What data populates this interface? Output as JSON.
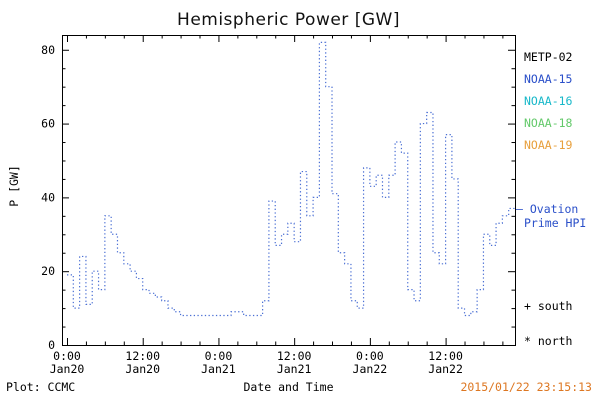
{
  "title": "Hemispheric Power [GW]",
  "axes": {
    "ylabel": "P [GW]",
    "xlabel": "Date and Time",
    "yticks": [
      0,
      20,
      40,
      60,
      80
    ],
    "y_minor_step": 5,
    "xticks": [
      {
        "hour": 0,
        "time": "0:00",
        "date": "Jan20"
      },
      {
        "hour": 12,
        "time": "12:00",
        "date": "Jan20"
      },
      {
        "hour": 24,
        "time": "0:00",
        "date": "Jan21"
      },
      {
        "hour": 36,
        "time": "12:00",
        "date": "Jan21"
      },
      {
        "hour": 48,
        "time": "0:00",
        "date": "Jan22"
      },
      {
        "hour": 60,
        "time": "12:00",
        "date": "Jan22"
      }
    ],
    "x_minor_step": 3
  },
  "legend": {
    "satellites": [
      {
        "label": "METP-02",
        "color": "#000000"
      },
      {
        "label": "NOAA-15",
        "color": "#2a4fc9"
      },
      {
        "label": "NOAA-16",
        "color": "#17b8c9"
      },
      {
        "label": "NOAA-18",
        "color": "#63c96a"
      },
      {
        "label": "NOAA-19",
        "color": "#e8a03d"
      }
    ],
    "model_line1": "– Ovation",
    "model_line2": "Prime HPI",
    "model_color": "#2a4fc9",
    "south_marker": "+ south",
    "north_marker": "* north"
  },
  "footer": {
    "plot_source": "Plot: CCMC",
    "timestamp": "2015/01/22 23:15:13",
    "timestamp_color": "#dd7722"
  },
  "chart_data": {
    "type": "line",
    "title": "Hemispheric Power [GW]",
    "xlabel": "Date and Time",
    "ylabel": "P [GW]",
    "ylim": [
      0,
      84
    ],
    "xlim": [
      0,
      71
    ],
    "x_unit": "hours since Jan20 0:00",
    "line_color": "#4a6fd4",
    "line_style": "dotted",
    "grid": false,
    "legend_position": "right",
    "series": [
      {
        "name": "Ovation Prime HPI",
        "x": [
          0,
          1,
          2,
          3,
          4,
          5,
          6,
          7,
          8,
          9,
          10,
          11,
          12,
          13,
          14,
          15,
          16,
          17,
          18,
          19,
          20,
          21,
          22,
          23,
          24,
          25,
          26,
          27,
          28,
          29,
          30,
          31,
          32,
          33,
          34,
          35,
          36,
          37,
          38,
          39,
          40,
          41,
          42,
          43,
          44,
          45,
          46,
          47,
          48,
          49,
          50,
          51,
          52,
          53,
          54,
          55,
          56,
          57,
          58,
          59,
          60,
          61,
          62,
          63,
          64,
          65,
          66,
          67,
          68,
          69,
          70,
          71
        ],
        "values": [
          19,
          10,
          24,
          11,
          20,
          15,
          35,
          30,
          25,
          22,
          20,
          18,
          15,
          14,
          13,
          12,
          10,
          9,
          8,
          8,
          8,
          8,
          8,
          8,
          8,
          8,
          9,
          9,
          8,
          8,
          8,
          12,
          39,
          27,
          30,
          33,
          28,
          47,
          35,
          40,
          82,
          70,
          41,
          25,
          22,
          12,
          10,
          48,
          43,
          46,
          40,
          46,
          55,
          52,
          15,
          12,
          60,
          63,
          25,
          22,
          57,
          45,
          10,
          8,
          9,
          15,
          30,
          27,
          33,
          35,
          37,
          37
        ]
      }
    ]
  }
}
